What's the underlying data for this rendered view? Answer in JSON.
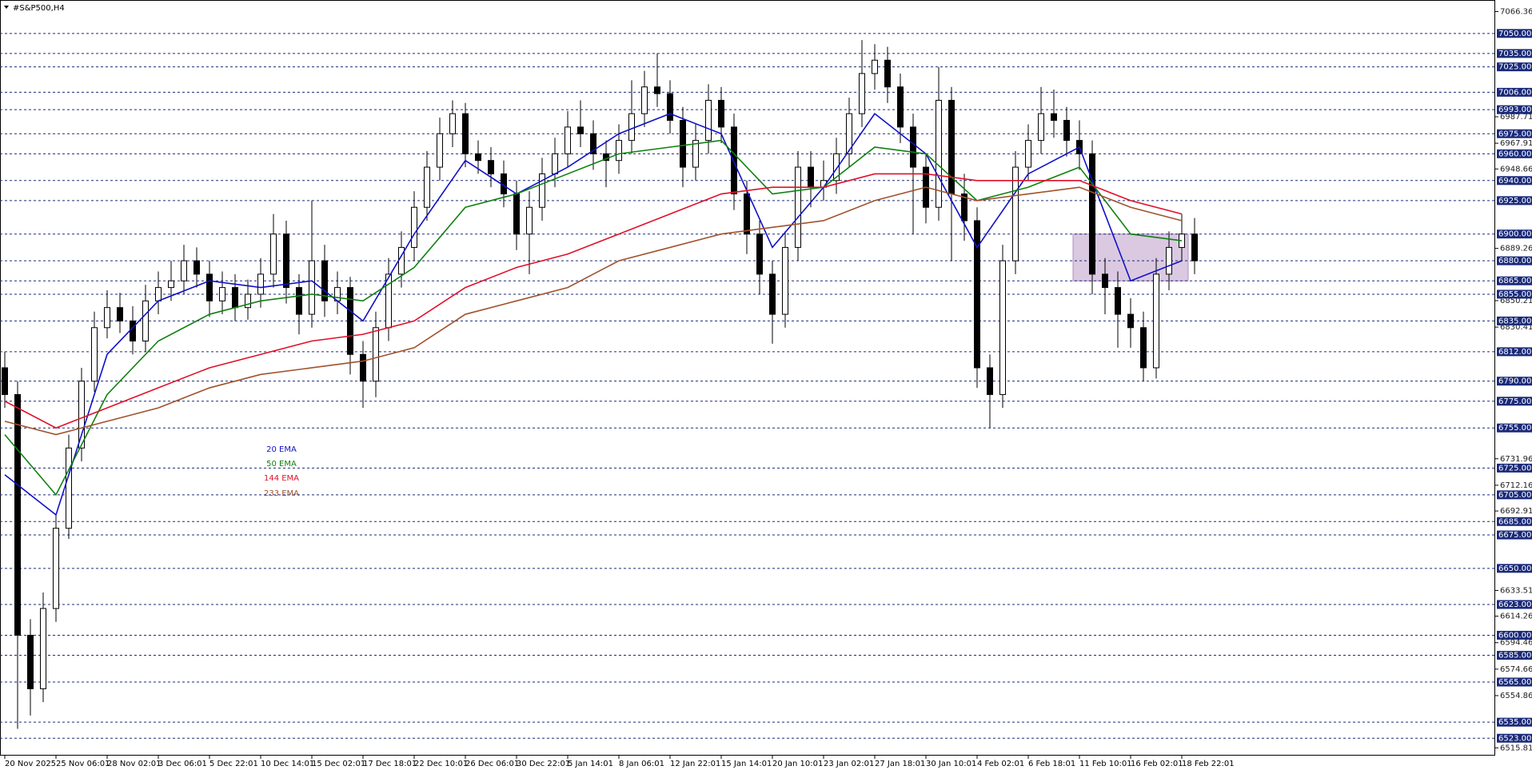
{
  "chart_data": {
    "type": "candlestick",
    "title": "#S&P500,H4",
    "categories": [
      "20 Nov 2025",
      null,
      null,
      null,
      "25 Nov 06:01",
      null,
      null,
      null,
      "28 Nov 02:01",
      null,
      null,
      null,
      "3 Dec 06:01",
      null,
      null,
      null,
      "5 Dec 22:01",
      null,
      null,
      null,
      "10 Dec 14:01",
      null,
      null,
      null,
      "15 Dec 02:01",
      null,
      null,
      null,
      "17 Dec 18:01",
      null,
      null,
      null,
      "22 Dec 10:01",
      null,
      null,
      null,
      "26 Dec 06:01",
      null,
      null,
      null,
      "30 Dec 22:01",
      null,
      null,
      null,
      "5 Jan 14:01",
      null,
      null,
      null,
      "8 Jan 06:01",
      null,
      null,
      null,
      "12 Jan 22:01",
      null,
      null,
      null,
      "15 Jan 14:01",
      null,
      null,
      null,
      "20 Jan 10:01",
      null,
      null,
      null,
      "23 Jan 02:01",
      null,
      null,
      null,
      "27 Jan 18:01",
      null,
      null,
      null,
      "30 Jan 10:01",
      null,
      null,
      null,
      "4 Feb 02:01",
      null,
      null,
      null,
      "6 Feb 18:01",
      null,
      null,
      null,
      "11 Feb 10:01",
      null,
      null,
      null,
      "16 Feb 02:01",
      null,
      null,
      null,
      "18 Feb 22:01",
      null
    ],
    "open": [
      6800,
      6780,
      6600,
      6560,
      6620,
      6680,
      6740,
      6790,
      6830,
      6845,
      6835,
      6820,
      6850,
      6860,
      6865,
      6880,
      6870,
      6850,
      6860,
      6845,
      6855,
      6870,
      6900,
      6860,
      6840,
      6880,
      6850,
      6860,
      6810,
      6790,
      6830,
      6870,
      6890,
      6920,
      6950,
      6975,
      6990,
      6960,
      6955,
      6945,
      6930,
      6900,
      6920,
      6945,
      6960,
      6980,
      6975,
      6960,
      6955,
      6970,
      6990,
      7010,
      7005,
      6985,
      6950,
      6970,
      7000,
      6980,
      6930,
      6900,
      6870,
      6840,
      6890,
      6950,
      6935,
      6940,
      6960,
      6990,
      7020,
      7030,
      7010,
      6980,
      6950,
      6920,
      7000,
      6930,
      6910,
      6800,
      6780,
      6880,
      6950,
      6970,
      6990,
      6985,
      6970,
      6960,
      6870,
      6860,
      6840,
      6830,
      6800,
      6870,
      6890,
      6900
    ],
    "high": [
      6812,
      6790,
      6612,
      6632,
      6690,
      6750,
      6800,
      6842,
      6858,
      6856,
      6846,
      6862,
      6872,
      6880,
      6892,
      6890,
      6880,
      6872,
      6870,
      6866,
      6882,
      6915,
      6910,
      6870,
      6925,
      6892,
      6872,
      6868,
      6820,
      6842,
      6882,
      6902,
      6932,
      6962,
      6987,
      7000,
      6998,
      6970,
      6965,
      6955,
      6940,
      6932,
      6957,
      6972,
      6992,
      7000,
      6985,
      6970,
      6982,
      7015,
      7022,
      7035,
      7015,
      6995,
      6982,
      7012,
      7010,
      6990,
      6940,
      6910,
      6880,
      6902,
      6962,
      6962,
      6955,
      6972,
      7002,
      7045,
      7042,
      7040,
      7020,
      6990,
      6960,
      7025,
      7010,
      6945,
      6920,
      6810,
      6892,
      6962,
      6982,
      7010,
      7008,
      6995,
      6985,
      6970,
      6882,
      6872,
      6852,
      6842,
      6882,
      6902,
      6915,
      6912
    ],
    "low": [
      6770,
      6530,
      6540,
      6550,
      6610,
      6672,
      6730,
      6782,
      6822,
      6826,
      6810,
      6812,
      6840,
      6850,
      6855,
      6860,
      6838,
      6840,
      6835,
      6836,
      6845,
      6860,
      6848,
      6825,
      6830,
      6838,
      6840,
      6795,
      6770,
      6778,
      6820,
      6860,
      6880,
      6910,
      6940,
      6965,
      6950,
      6945,
      6935,
      6920,
      6888,
      6870,
      6910,
      6935,
      6950,
      6965,
      6948,
      6935,
      6945,
      6960,
      6980,
      6995,
      6975,
      6935,
      6940,
      6960,
      6968,
      6918,
      6885,
      6855,
      6818,
      6830,
      6880,
      6920,
      6925,
      6930,
      6950,
      6980,
      7008,
      6998,
      6968,
      6900,
      6908,
      6910,
      6880,
      6895,
      6785,
      6755,
      6770,
      6870,
      6940,
      6960,
      6972,
      6958,
      6948,
      6855,
      6840,
      6815,
      6815,
      6790,
      6792,
      6858,
      6880,
      6870
    ],
    "close": [
      6780,
      6600,
      6560,
      6620,
      6680,
      6740,
      6790,
      6830,
      6845,
      6835,
      6820,
      6850,
      6860,
      6865,
      6880,
      6870,
      6850,
      6860,
      6845,
      6855,
      6870,
      6900,
      6860,
      6840,
      6880,
      6850,
      6860,
      6810,
      6790,
      6830,
      6870,
      6890,
      6920,
      6950,
      6975,
      6990,
      6960,
      6955,
      6945,
      6930,
      6900,
      6920,
      6945,
      6960,
      6980,
      6975,
      6960,
      6955,
      6970,
      6990,
      7010,
      7005,
      6985,
      6950,
      6970,
      7000,
      6980,
      6930,
      6900,
      6870,
      6840,
      6890,
      6950,
      6935,
      6940,
      6960,
      6990,
      7020,
      7030,
      7010,
      6980,
      6950,
      6920,
      7000,
      6930,
      6910,
      6800,
      6780,
      6880,
      6950,
      6970,
      6990,
      6985,
      6970,
      6960,
      6870,
      6860,
      6840,
      6830,
      6800,
      6870,
      6890,
      6900,
      6880
    ],
    "ema": {
      "x": [
        0,
        4,
        8,
        12,
        16,
        20,
        24,
        28,
        32,
        36,
        40,
        44,
        48,
        52,
        56,
        60,
        64,
        68,
        72,
        76,
        80,
        84,
        88,
        92
      ],
      "series": [
        {
          "name": "20 EMA",
          "color": "#1010c8",
          "values": [
            6720,
            6690,
            6810,
            6850,
            6865,
            6860,
            6865,
            6835,
            6900,
            6955,
            6930,
            6950,
            6975,
            6990,
            6975,
            6890,
            6935,
            6990,
            6960,
            6890,
            6945,
            6965,
            6865,
            6880
          ]
        },
        {
          "name": "50 EMA",
          "color": "#108010",
          "values": [
            6750,
            6705,
            6780,
            6820,
            6840,
            6850,
            6855,
            6850,
            6875,
            6920,
            6930,
            6945,
            6960,
            6965,
            6970,
            6930,
            6935,
            6965,
            6960,
            6925,
            6935,
            6950,
            6900,
            6895
          ]
        },
        {
          "name": "144 EMA",
          "color": "#e0102a",
          "values": [
            6775,
            6755,
            6770,
            6785,
            6800,
            6810,
            6820,
            6825,
            6835,
            6860,
            6875,
            6885,
            6900,
            6915,
            6930,
            6935,
            6935,
            6945,
            6945,
            6940,
            6940,
            6940,
            6925,
            6915
          ]
        },
        {
          "name": "233 EMA",
          "color": "#a0522d",
          "values": [
            6760,
            6750,
            6760,
            6770,
            6785,
            6795,
            6800,
            6805,
            6815,
            6840,
            6850,
            6860,
            6880,
            6890,
            6900,
            6905,
            6910,
            6925,
            6935,
            6925,
            6930,
            6935,
            6920,
            6910
          ]
        }
      ]
    },
    "zone": {
      "xlim": [
        83.5,
        92.5
      ],
      "ylim": [
        6865,
        6900
      ],
      "color": "#d4bfdc"
    },
    "ylim": [
      6510,
      7075
    ],
    "yticks": [
      7066.36,
      6987.71,
      6967.91,
      6948.66,
      6889.26,
      6850.21,
      6830.41,
      6731.96,
      6712.16,
      6692.91,
      6633.51,
      6614.26,
      6594.46,
      6574.66,
      6554.86,
      6515.81
    ],
    "levels": [
      {
        "value": 7050,
        "label": "7050.00"
      },
      {
        "value": 7035,
        "label": "7035.00"
      },
      {
        "value": 7025,
        "label": "7025.00"
      },
      {
        "value": 7006,
        "label": "7006.00"
      },
      {
        "value": 6993,
        "label": "6993.00"
      },
      {
        "value": 6975,
        "label": "6975.00"
      },
      {
        "value": 6960,
        "label": "6960.00"
      },
      {
        "value": 6940,
        "label": "6940.00"
      },
      {
        "value": 6925,
        "label": "6925.00"
      },
      {
        "value": 6900,
        "label": "6900.00"
      },
      {
        "value": 6880,
        "label": "6880.00"
      },
      {
        "value": 6865,
        "label": "6865.00"
      },
      {
        "value": 6855,
        "label": "6855.00"
      },
      {
        "value": 6835,
        "label": "6835.00"
      },
      {
        "value": 6812,
        "label": "6812.00"
      },
      {
        "value": 6790,
        "label": "6790.00"
      },
      {
        "value": 6775,
        "label": "6775.00"
      },
      {
        "value": 6755,
        "label": "6755.00"
      },
      {
        "value": 6725,
        "label": "6725.00"
      },
      {
        "value": 6705,
        "label": "6705.00"
      },
      {
        "value": 6685,
        "label": "6685.00"
      },
      {
        "value": 6675,
        "label": "6675.00"
      },
      {
        "value": 6650,
        "label": "6650.00"
      },
      {
        "value": 6623,
        "label": "6623.00"
      },
      {
        "value": 6600,
        "label": "6600.00"
      },
      {
        "value": 6585,
        "label": "6585.00"
      },
      {
        "value": 6565,
        "label": "6565.00"
      },
      {
        "value": 6535,
        "label": "6535.00"
      },
      {
        "value": 6523,
        "label": "6523.00"
      }
    ],
    "level_color": "#1a2a7a"
  }
}
